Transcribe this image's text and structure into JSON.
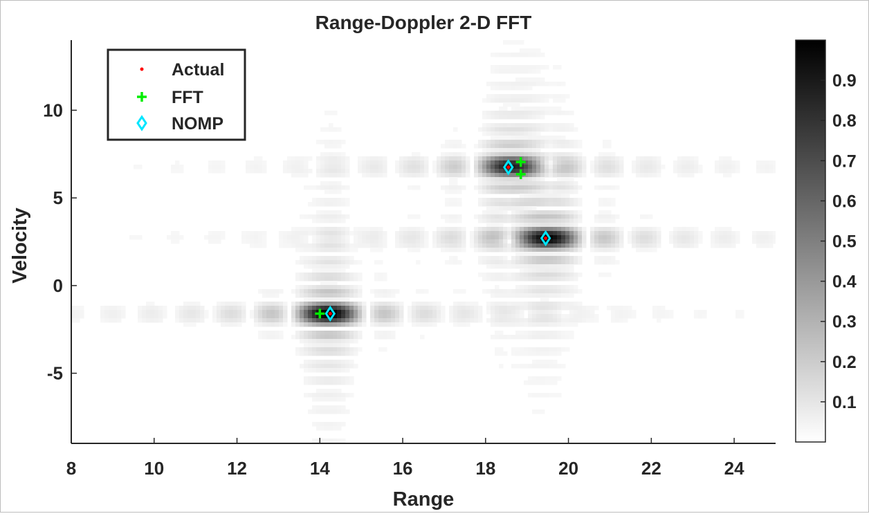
{
  "chart_data": {
    "type": "heatmap",
    "title": "Range-Doppler 2-D FFT",
    "xlabel": "Range",
    "ylabel": "Velocity",
    "xlim": [
      8,
      25
    ],
    "ylim": [
      -9,
      14
    ],
    "xticks": [
      8,
      10,
      12,
      14,
      16,
      18,
      20,
      22,
      24
    ],
    "xtick_labels": [
      "8",
      "10",
      "12",
      "14",
      "16",
      "18",
      "20",
      "22",
      "24"
    ],
    "yticks": [
      -5,
      0,
      5,
      10
    ],
    "ytick_labels": [
      "-5",
      "0",
      "5",
      "10"
    ],
    "colormap": "gray-reversed",
    "colorbar": {
      "range": [
        0,
        1
      ],
      "ticks": [
        0.1,
        0.2,
        0.3,
        0.4,
        0.5,
        0.6,
        0.7,
        0.8,
        0.9
      ],
      "tick_labels": [
        "0.1",
        "0.2",
        "0.3",
        "0.4",
        "0.5",
        "0.6",
        "0.7",
        "0.8",
        "0.9"
      ]
    },
    "targets": [
      {
        "range": 14.2,
        "velocity": -1.6,
        "amplitude": 1.0
      },
      {
        "range": 18.6,
        "velocity": 6.8,
        "amplitude": 0.85
      },
      {
        "range": 19.5,
        "velocity": 2.7,
        "amplitude": 0.95
      }
    ],
    "legend": {
      "position": "top-left"
    },
    "series": [
      {
        "name": "Actual",
        "marker": "dot",
        "color": "#ff0000",
        "points": [
          [
            14.25,
            -1.6
          ],
          [
            18.55,
            6.75
          ],
          [
            19.45,
            2.7
          ]
        ]
      },
      {
        "name": "FFT",
        "marker": "plus",
        "color": "#00ee00",
        "points": [
          [
            14.0,
            -1.6
          ],
          [
            18.85,
            7.05
          ],
          [
            18.85,
            6.35
          ]
        ]
      },
      {
        "name": "NOMP",
        "marker": "diamond",
        "color": "#00e6ff",
        "points": [
          [
            14.25,
            -1.6
          ],
          [
            18.55,
            6.75
          ],
          [
            19.45,
            2.7
          ]
        ]
      }
    ]
  }
}
